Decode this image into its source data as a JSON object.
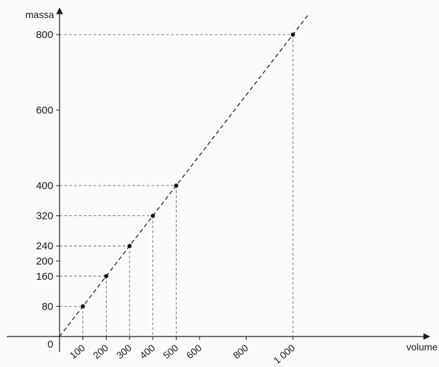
{
  "chart_data": {
    "type": "scatter",
    "xlabel": "volume",
    "ylabel": "massa",
    "origin_label": "0",
    "x_ticks": [
      {
        "value": 100,
        "label": "100"
      },
      {
        "value": 200,
        "label": "200"
      },
      {
        "value": 300,
        "label": "300"
      },
      {
        "value": 400,
        "label": "400"
      },
      {
        "value": 500,
        "label": "500"
      },
      {
        "value": 600,
        "label": "600"
      },
      {
        "value": 800,
        "label": "800"
      },
      {
        "value": 1000,
        "label": "1 000"
      }
    ],
    "y_ticks": [
      {
        "value": 80,
        "label": "80"
      },
      {
        "value": 160,
        "label": "160"
      },
      {
        "value": 200,
        "label": "200"
      },
      {
        "value": 240,
        "label": "240"
      },
      {
        "value": 320,
        "label": "320"
      },
      {
        "value": 400,
        "label": "400"
      },
      {
        "value": 600,
        "label": "600"
      },
      {
        "value": 800,
        "label": "800"
      }
    ],
    "points": [
      {
        "x": 100,
        "y": 80
      },
      {
        "x": 200,
        "y": 160
      },
      {
        "x": 300,
        "y": 240
      },
      {
        "x": 400,
        "y": 320
      },
      {
        "x": 500,
        "y": 400
      },
      {
        "x": 1000,
        "y": 800
      }
    ],
    "trend_line": {
      "slope": 0.8,
      "intercept": 0,
      "style": "dashed"
    },
    "guide_lines": "dashed",
    "xlim": [
      0,
      1000
    ],
    "ylim": [
      0,
      800
    ],
    "grid": false
  }
}
